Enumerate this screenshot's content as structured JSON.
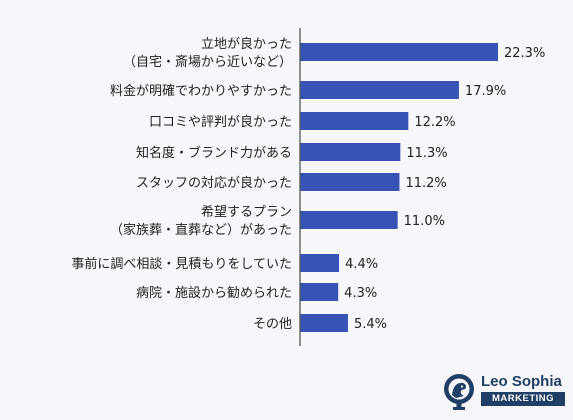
{
  "chart_data": {
    "type": "bar",
    "orientation": "horizontal",
    "categories": [
      [
        "立地が良かった",
        "（自宅・斎場から近いなど）"
      ],
      [
        "料金が明確でわかりやすかった"
      ],
      [
        "口コミや評判が良かった"
      ],
      [
        "知名度・ブランド力がある"
      ],
      [
        "スタッフの対応が良かった"
      ],
      [
        "希望するプラン",
        "（家族葬・直葬など）があった"
      ],
      [
        "事前に調べ相談・見積もりをしていた"
      ],
      [
        "病院・施設から勧められた"
      ],
      [
        "その他"
      ]
    ],
    "values": [
      22.3,
      17.9,
      12.2,
      11.3,
      11.2,
      11.0,
      4.4,
      4.3,
      5.4
    ],
    "value_labels": [
      "22.3%",
      "17.9%",
      "12.2%",
      "11.3%",
      "11.2%",
      "11.0%",
      "4.4%",
      "4.3%",
      "5.4%"
    ],
    "xlim": [
      0,
      22.3
    ],
    "bar_color": "#3653b5",
    "grid": false
  },
  "brand": {
    "name": "Leo Sophia",
    "tag": "MARKETING",
    "color": "#1f3f66"
  }
}
